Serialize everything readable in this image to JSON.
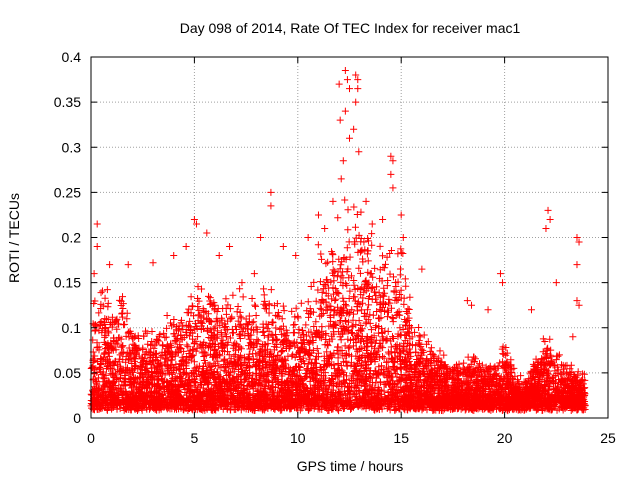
{
  "chart_data": {
    "type": "scatter",
    "title": "Day 098 of 2014, Rate Of TEC Index for receiver mac1",
    "xlabel": "GPS time / hours",
    "ylabel": "ROTI / TECUs",
    "xlim": [
      0,
      25
    ],
    "ylim": [
      0,
      0.4
    ],
    "xticks": [
      0,
      5,
      10,
      15,
      20,
      25
    ],
    "yticks": [
      0,
      0.05,
      0.1,
      0.15,
      0.2,
      0.25,
      0.3,
      0.35,
      0.4
    ],
    "xtick_labels": [
      "0",
      "5",
      "10",
      "15",
      "20",
      "25"
    ],
    "ytick_labels": [
      "0",
      "0.05",
      "0.1",
      "0.15",
      "0.2",
      "0.25",
      "0.3",
      "0.35",
      "0.4"
    ],
    "grid": true,
    "marker": "+",
    "series_color": "#ff0000",
    "grid_color": "#a0a0a0",
    "envelope": {
      "x": [
        0,
        0.5,
        1,
        1.5,
        2,
        2.5,
        3,
        3.5,
        4,
        4.5,
        5,
        5.5,
        6,
        6.5,
        7,
        7.5,
        8,
        8.5,
        9,
        9.5,
        10,
        10.5,
        11,
        11.5,
        12,
        12.5,
        13,
        13.5,
        14,
        14.5,
        15,
        15.5,
        16,
        16.5,
        17,
        17.5,
        18,
        18.5,
        19,
        19.5,
        20,
        20.5,
        21,
        21.5,
        22,
        22.5,
        23,
        23.5,
        23.9
      ],
      "upper": [
        0.12,
        0.15,
        0.12,
        0.13,
        0.1,
        0.09,
        0.11,
        0.1,
        0.12,
        0.12,
        0.14,
        0.15,
        0.14,
        0.13,
        0.14,
        0.12,
        0.13,
        0.14,
        0.13,
        0.11,
        0.12,
        0.13,
        0.19,
        0.18,
        0.22,
        0.24,
        0.22,
        0.19,
        0.18,
        0.2,
        0.19,
        0.12,
        0.09,
        0.08,
        0.07,
        0.06,
        0.06,
        0.07,
        0.06,
        0.06,
        0.08,
        0.05,
        0.04,
        0.07,
        0.09,
        0.08,
        0.06,
        0.05,
        0.05
      ]
    },
    "peaks": [
      {
        "x": 0.3,
        "y": 0.215
      },
      {
        "x": 0.3,
        "y": 0.19
      },
      {
        "x": 0.15,
        "y": 0.16
      },
      {
        "x": 0.9,
        "y": 0.17
      },
      {
        "x": 1.8,
        "y": 0.17
      },
      {
        "x": 3.0,
        "y": 0.172
      },
      {
        "x": 4.0,
        "y": 0.18
      },
      {
        "x": 4.6,
        "y": 0.19
      },
      {
        "x": 5.0,
        "y": 0.22
      },
      {
        "x": 5.1,
        "y": 0.215
      },
      {
        "x": 5.6,
        "y": 0.205
      },
      {
        "x": 6.2,
        "y": 0.18
      },
      {
        "x": 6.7,
        "y": 0.19
      },
      {
        "x": 7.3,
        "y": 0.15
      },
      {
        "x": 7.9,
        "y": 0.16
      },
      {
        "x": 8.2,
        "y": 0.2
      },
      {
        "x": 8.7,
        "y": 0.25
      },
      {
        "x": 8.7,
        "y": 0.235
      },
      {
        "x": 9.3,
        "y": 0.19
      },
      {
        "x": 9.9,
        "y": 0.18
      },
      {
        "x": 10.5,
        "y": 0.2
      },
      {
        "x": 11.0,
        "y": 0.225
      },
      {
        "x": 11.3,
        "y": 0.21
      },
      {
        "x": 11.7,
        "y": 0.24
      },
      {
        "x": 12.0,
        "y": 0.37
      },
      {
        "x": 12.05,
        "y": 0.33
      },
      {
        "x": 12.3,
        "y": 0.385
      },
      {
        "x": 12.3,
        "y": 0.34
      },
      {
        "x": 12.4,
        "y": 0.375
      },
      {
        "x": 12.5,
        "y": 0.365
      },
      {
        "x": 12.5,
        "y": 0.31
      },
      {
        "x": 12.2,
        "y": 0.285
      },
      {
        "x": 12.1,
        "y": 0.265
      },
      {
        "x": 12.8,
        "y": 0.38
      },
      {
        "x": 12.9,
        "y": 0.375
      },
      {
        "x": 12.9,
        "y": 0.365
      },
      {
        "x": 12.8,
        "y": 0.35
      },
      {
        "x": 12.7,
        "y": 0.32
      },
      {
        "x": 12.95,
        "y": 0.295
      },
      {
        "x": 13.3,
        "y": 0.24
      },
      {
        "x": 13.6,
        "y": 0.215
      },
      {
        "x": 14.1,
        "y": 0.22
      },
      {
        "x": 14.5,
        "y": 0.29
      },
      {
        "x": 14.6,
        "y": 0.285
      },
      {
        "x": 14.5,
        "y": 0.27
      },
      {
        "x": 14.6,
        "y": 0.255
      },
      {
        "x": 15.0,
        "y": 0.225
      },
      {
        "x": 15.1,
        "y": 0.2
      },
      {
        "x": 16.0,
        "y": 0.165
      },
      {
        "x": 18.2,
        "y": 0.13
      },
      {
        "x": 18.4,
        "y": 0.125
      },
      {
        "x": 19.2,
        "y": 0.12
      },
      {
        "x": 19.8,
        "y": 0.16
      },
      {
        "x": 19.9,
        "y": 0.15
      },
      {
        "x": 21.3,
        "y": 0.12
      },
      {
        "x": 22.1,
        "y": 0.23
      },
      {
        "x": 22.2,
        "y": 0.22
      },
      {
        "x": 22.0,
        "y": 0.21
      },
      {
        "x": 22.5,
        "y": 0.15
      },
      {
        "x": 23.5,
        "y": 0.2
      },
      {
        "x": 23.6,
        "y": 0.195
      },
      {
        "x": 23.5,
        "y": 0.17
      },
      {
        "x": 23.6,
        "y": 0.125
      },
      {
        "x": 23.5,
        "y": 0.13
      },
      {
        "x": 23.3,
        "y": 0.09
      }
    ],
    "point_count": 6500,
    "random_seed": 98
  }
}
